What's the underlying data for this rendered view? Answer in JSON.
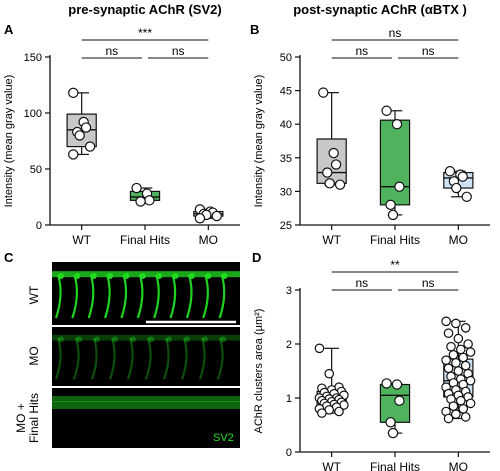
{
  "panels": {
    "A": "A",
    "B": "B",
    "C": "C",
    "D": "D"
  },
  "colors": {
    "WT": "#c8c8c8",
    "Final Hits": "#4fb35d",
    "MO": "#cfe2f3",
    "stroke": "#111111",
    "micrograph_signal": "#22dd22"
  },
  "micrograph": {
    "rows": [
      "WT",
      "MO",
      "MO +\nFinal Hits"
    ],
    "stain": "SV2"
  },
  "chart_data": [
    {
      "id": "A",
      "type": "boxplot",
      "title": "pre-synaptic AChR (SV2)",
      "ylabel": "Intensity (mean gray value)",
      "xlabel": "",
      "ylim": [
        0,
        150
      ],
      "yticks": [
        0,
        50,
        100,
        150
      ],
      "categories": [
        "WT",
        "Final Hits",
        "MO"
      ],
      "boxes": [
        {
          "min": 63,
          "q1": 70,
          "median": 85,
          "q3": 99,
          "max": 118
        },
        {
          "min": 21,
          "q1": 22,
          "median": 25,
          "q3": 30,
          "max": 33
        },
        {
          "min": 6,
          "q1": 8,
          "median": 10,
          "q3": 12,
          "max": 14
        }
      ],
      "points": [
        [
          118,
          92,
          87,
          83,
          80,
          70,
          63
        ],
        [
          33,
          28,
          22,
          21
        ],
        [
          14,
          12,
          11,
          10,
          9,
          8,
          6
        ]
      ],
      "significance": [
        {
          "from": 0,
          "to": 2,
          "label": "***",
          "level": 1
        },
        {
          "from": 0,
          "to": 1,
          "label": "ns",
          "level": 0
        },
        {
          "from": 1,
          "to": 2,
          "label": "ns",
          "level": 0
        }
      ]
    },
    {
      "id": "B",
      "type": "boxplot",
      "title": "post-synaptic AChR (αBTX )",
      "ylabel": "Intensity (mean gray value)",
      "xlabel": "",
      "ylim": [
        25,
        50
      ],
      "yticks": [
        25,
        30,
        35,
        40,
        45,
        50
      ],
      "categories": [
        "WT",
        "Final Hits",
        "MO"
      ],
      "boxes": [
        {
          "min": 31,
          "q1": 31.2,
          "median": 32.8,
          "q3": 37.8,
          "max": 44.7
        },
        {
          "min": 26.5,
          "q1": 28,
          "median": 30.7,
          "q3": 40.6,
          "max": 42
        },
        {
          "min": 29.2,
          "q1": 30.5,
          "median": 32,
          "q3": 32.8,
          "max": 33
        }
      ],
      "points": [
        [
          44.7,
          35.7,
          34,
          32.8,
          31.2,
          31
        ],
        [
          42,
          40,
          30.7,
          28,
          26.5
        ],
        [
          33,
          32.5,
          32.2,
          31.5,
          30.5,
          29.2
        ]
      ],
      "significance": [
        {
          "from": 0,
          "to": 2,
          "label": "ns",
          "level": 1
        },
        {
          "from": 0,
          "to": 1,
          "label": "ns",
          "level": 0
        },
        {
          "from": 1,
          "to": 2,
          "label": "ns",
          "level": 0
        }
      ]
    },
    {
      "id": "D",
      "type": "boxplot",
      "title": "",
      "ylabel": "AChR clusters area (µm²)",
      "xlabel": "",
      "ylim": [
        0,
        3
      ],
      "yticks": [
        0,
        1,
        2,
        3
      ],
      "categories": [
        "WT",
        "Final Hits",
        "MO"
      ],
      "boxes": [
        {
          "min": 0.72,
          "q1": 0.85,
          "median": 0.98,
          "q3": 1.12,
          "max": 1.92
        },
        {
          "min": 0.35,
          "q1": 0.55,
          "median": 1.05,
          "q3": 1.25,
          "max": 1.27
        },
        {
          "min": 0.62,
          "q1": 1.02,
          "median": 1.32,
          "q3": 1.72,
          "max": 2.42
        }
      ],
      "points": [
        [
          1.92,
          1.45,
          1.2,
          1.18,
          1.15,
          1.12,
          1.1,
          1.08,
          1.05,
          1.03,
          1.0,
          1.0,
          0.98,
          0.97,
          0.95,
          0.93,
          0.92,
          0.9,
          0.88,
          0.87,
          0.85,
          0.83,
          0.8,
          0.78,
          0.75,
          0.72
        ],
        [
          1.27,
          1.25,
          0.95,
          0.55,
          0.35
        ],
        [
          2.42,
          2.38,
          2.3,
          2.2,
          2.1,
          2.0,
          1.95,
          1.9,
          1.85,
          1.8,
          1.75,
          1.7,
          1.65,
          1.6,
          1.55,
          1.5,
          1.45,
          1.4,
          1.35,
          1.32,
          1.28,
          1.25,
          1.2,
          1.15,
          1.12,
          1.08,
          1.05,
          1.02,
          0.98,
          0.95,
          0.9,
          0.85,
          0.8,
          0.75,
          0.7,
          0.65,
          0.62
        ]
      ],
      "significance": [
        {
          "from": 0,
          "to": 2,
          "label": "**",
          "level": 1
        },
        {
          "from": 0,
          "to": 1,
          "label": "ns",
          "level": 0
        },
        {
          "from": 1,
          "to": 2,
          "label": "ns",
          "level": 0
        }
      ]
    }
  ]
}
